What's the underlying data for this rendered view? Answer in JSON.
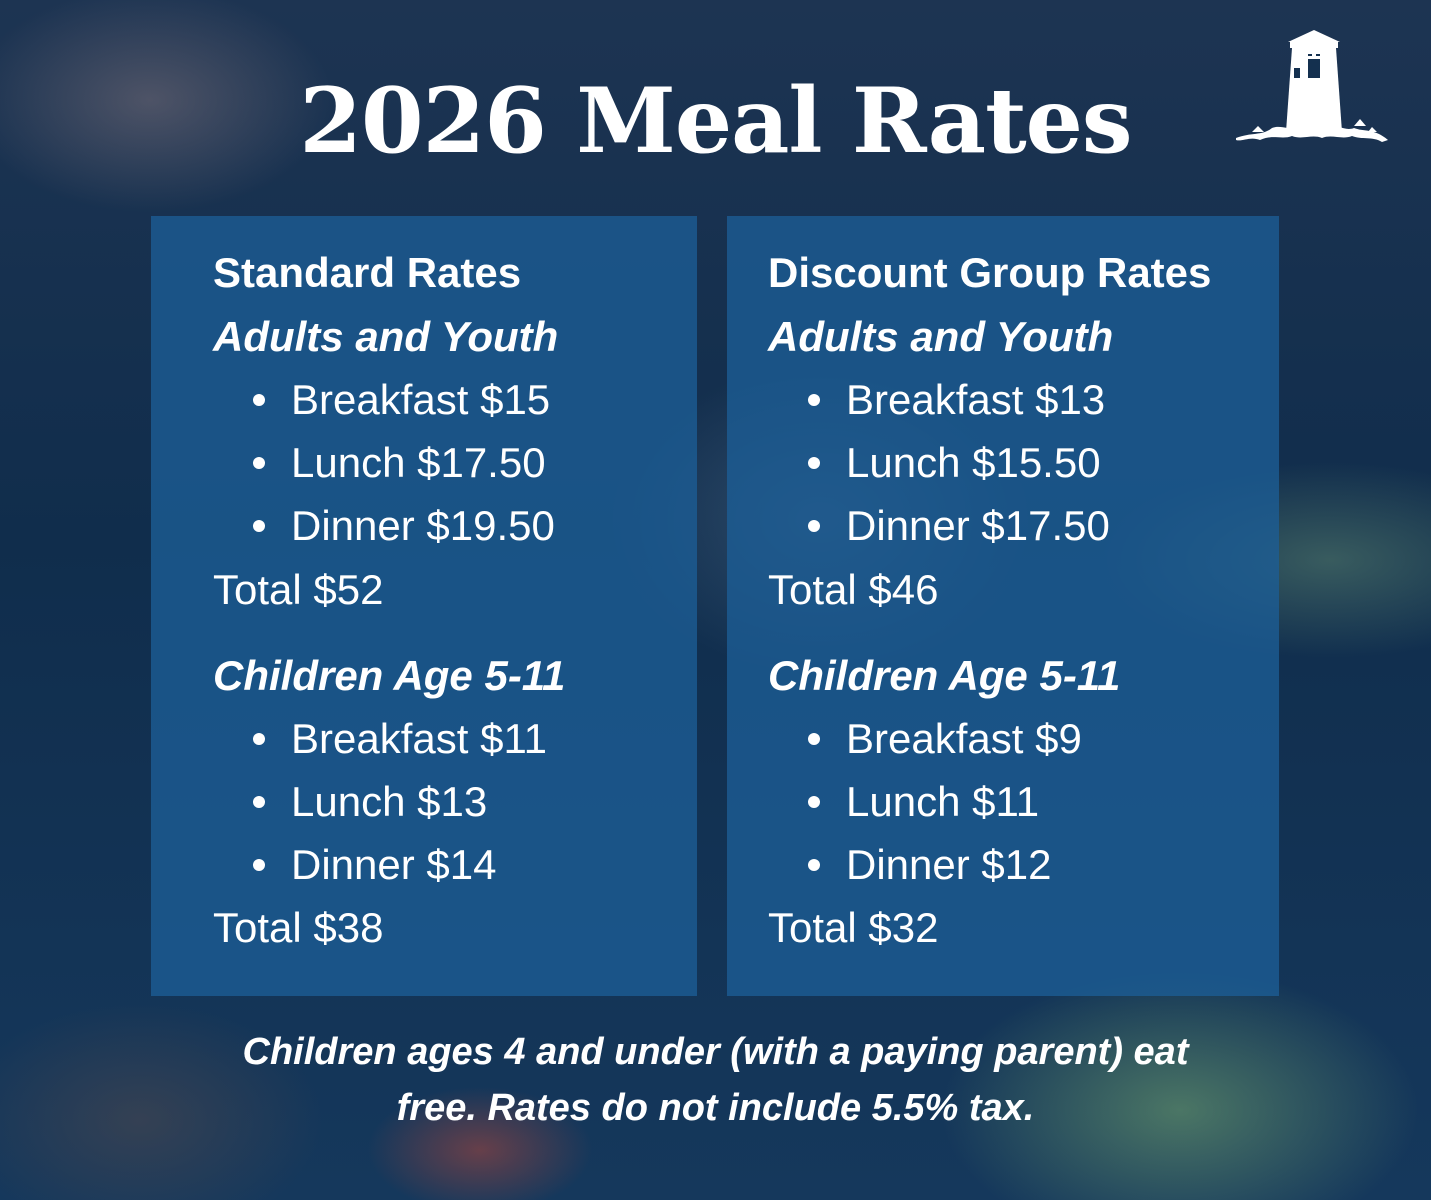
{
  "title": "2026 Meal Rates",
  "logo": {
    "icon": "lighthouse-tower-logo-icon"
  },
  "colors": {
    "panel": "#1c5e96",
    "background": "#14304f",
    "text": "#ffffff"
  },
  "panels": [
    {
      "heading": "Standard Rates",
      "groups": [
        {
          "label": "Adults and Youth",
          "items": [
            "Breakfast $15",
            "Lunch $17.50",
            "Dinner $19.50"
          ],
          "total": "Total $52"
        },
        {
          "label": "Children Age 5-11",
          "items": [
            "Breakfast $11",
            "Lunch $13",
            "Dinner $14"
          ],
          "total": "Total $38"
        }
      ]
    },
    {
      "heading": "Discount Group Rates",
      "groups": [
        {
          "label": "Adults and Youth",
          "items": [
            "Breakfast $13",
            "Lunch $15.50",
            "Dinner $17.50"
          ],
          "total": "Total $46"
        },
        {
          "label": "Children Age 5-11",
          "items": [
            "Breakfast $9",
            "Lunch $11",
            "Dinner $12"
          ],
          "total": "Total $32"
        }
      ]
    }
  ],
  "footnote": {
    "line1": "Children ages 4 and under (with a paying parent) eat",
    "line2": "free. Rates do not include 5.5% tax."
  }
}
